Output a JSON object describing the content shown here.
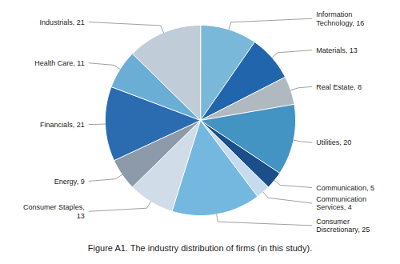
{
  "chart_data": {
    "type": "pie",
    "title": "Figure A1. The industry distribution of firms (in this study).",
    "categories": [
      "Information\nTechnology, 16",
      "Materials, 13",
      "Real Estate, 8",
      "Utilities, 20",
      "Communication, 5",
      "Communication\nServices, 4",
      "Consumer\nDiscretionary, 25",
      "Consumer Staples,\n13",
      "Energy, 9",
      "Financials, 21",
      "Health Care, 11",
      "Industrials, 21"
    ],
    "values": [
      16,
      13,
      8,
      20,
      5,
      4,
      25,
      13,
      9,
      21,
      11,
      21
    ],
    "colors": [
      "#7ab8d9",
      "#2166ac",
      "#b0b8c0",
      "#4393c3",
      "#1a4f8a",
      "#c6dbef",
      "#74b8e0",
      "#d0dde8",
      "#8c9aaa",
      "#2b6cb0",
      "#6aaed6",
      "#c0cdd8"
    ]
  }
}
